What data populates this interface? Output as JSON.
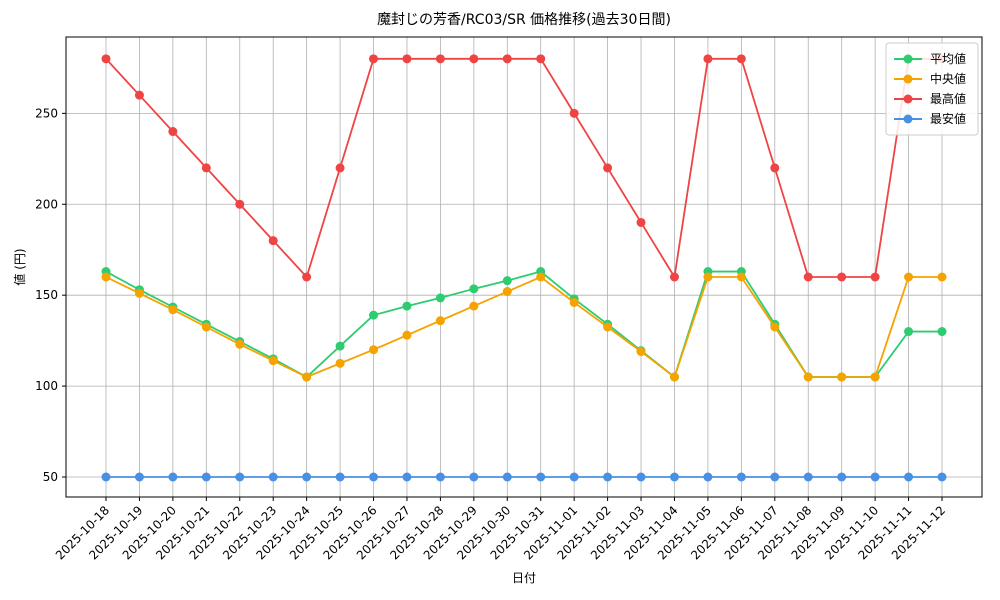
{
  "chart_data": {
    "type": "line",
    "title": "魔封じの芳香/RC03/SR 価格推移(過去30日間)",
    "x_label": "日付",
    "y_label": "値 (円)",
    "categories": [
      "2025-10-18",
      "2025-10-19",
      "2025-10-20",
      "2025-10-21",
      "2025-10-22",
      "2025-10-23",
      "2025-10-24",
      "2025-10-25",
      "2025-10-26",
      "2025-10-27",
      "2025-10-28",
      "2025-10-29",
      "2025-10-30",
      "2025-10-31",
      "2025-11-01",
      "2025-11-02",
      "2025-11-03",
      "2025-11-04",
      "2025-11-05",
      "2025-11-06",
      "2025-11-07",
      "2025-11-08",
      "2025-11-09",
      "2025-11-10",
      "2025-11-11",
      "2025-11-12"
    ],
    "series": [
      {
        "name": "平均値",
        "color": "#2ecc71",
        "values": [
          163,
          153,
          143.5,
          134,
          124.5,
          115,
          105,
          122,
          139,
          144,
          148.5,
          153.5,
          158,
          163,
          148,
          134,
          119.5,
          105,
          163,
          163,
          134,
          105,
          105,
          105,
          130,
          130
        ]
      },
      {
        "name": "中央値",
        "color": "#f5a300",
        "values": [
          160,
          151,
          142,
          132.5,
          123,
          114,
          105,
          112.5,
          120,
          128,
          136,
          144,
          152,
          160,
          146,
          132.5,
          119,
          105,
          160,
          160,
          132.5,
          105,
          105,
          105,
          160,
          160
        ]
      },
      {
        "name": "最高値",
        "color": "#ef4444",
        "values": [
          280,
          260,
          240,
          220,
          200,
          180,
          160,
          220,
          280,
          280,
          280,
          280,
          280,
          280,
          250,
          220,
          190,
          160,
          280,
          280,
          220,
          160,
          160,
          160,
          280,
          280
        ]
      },
      {
        "name": "最安値",
        "color": "#4a90e2",
        "values": [
          50,
          50,
          50,
          50,
          50,
          50,
          50,
          50,
          50,
          50,
          50,
          50,
          50,
          50,
          50,
          50,
          50,
          50,
          50,
          50,
          50,
          50,
          50,
          50,
          50,
          50
        ]
      }
    ],
    "ylim": [
      39,
      292
    ],
    "yticks": [
      50,
      100,
      150,
      200,
      250
    ],
    "grid": true,
    "legend": "upper right"
  }
}
